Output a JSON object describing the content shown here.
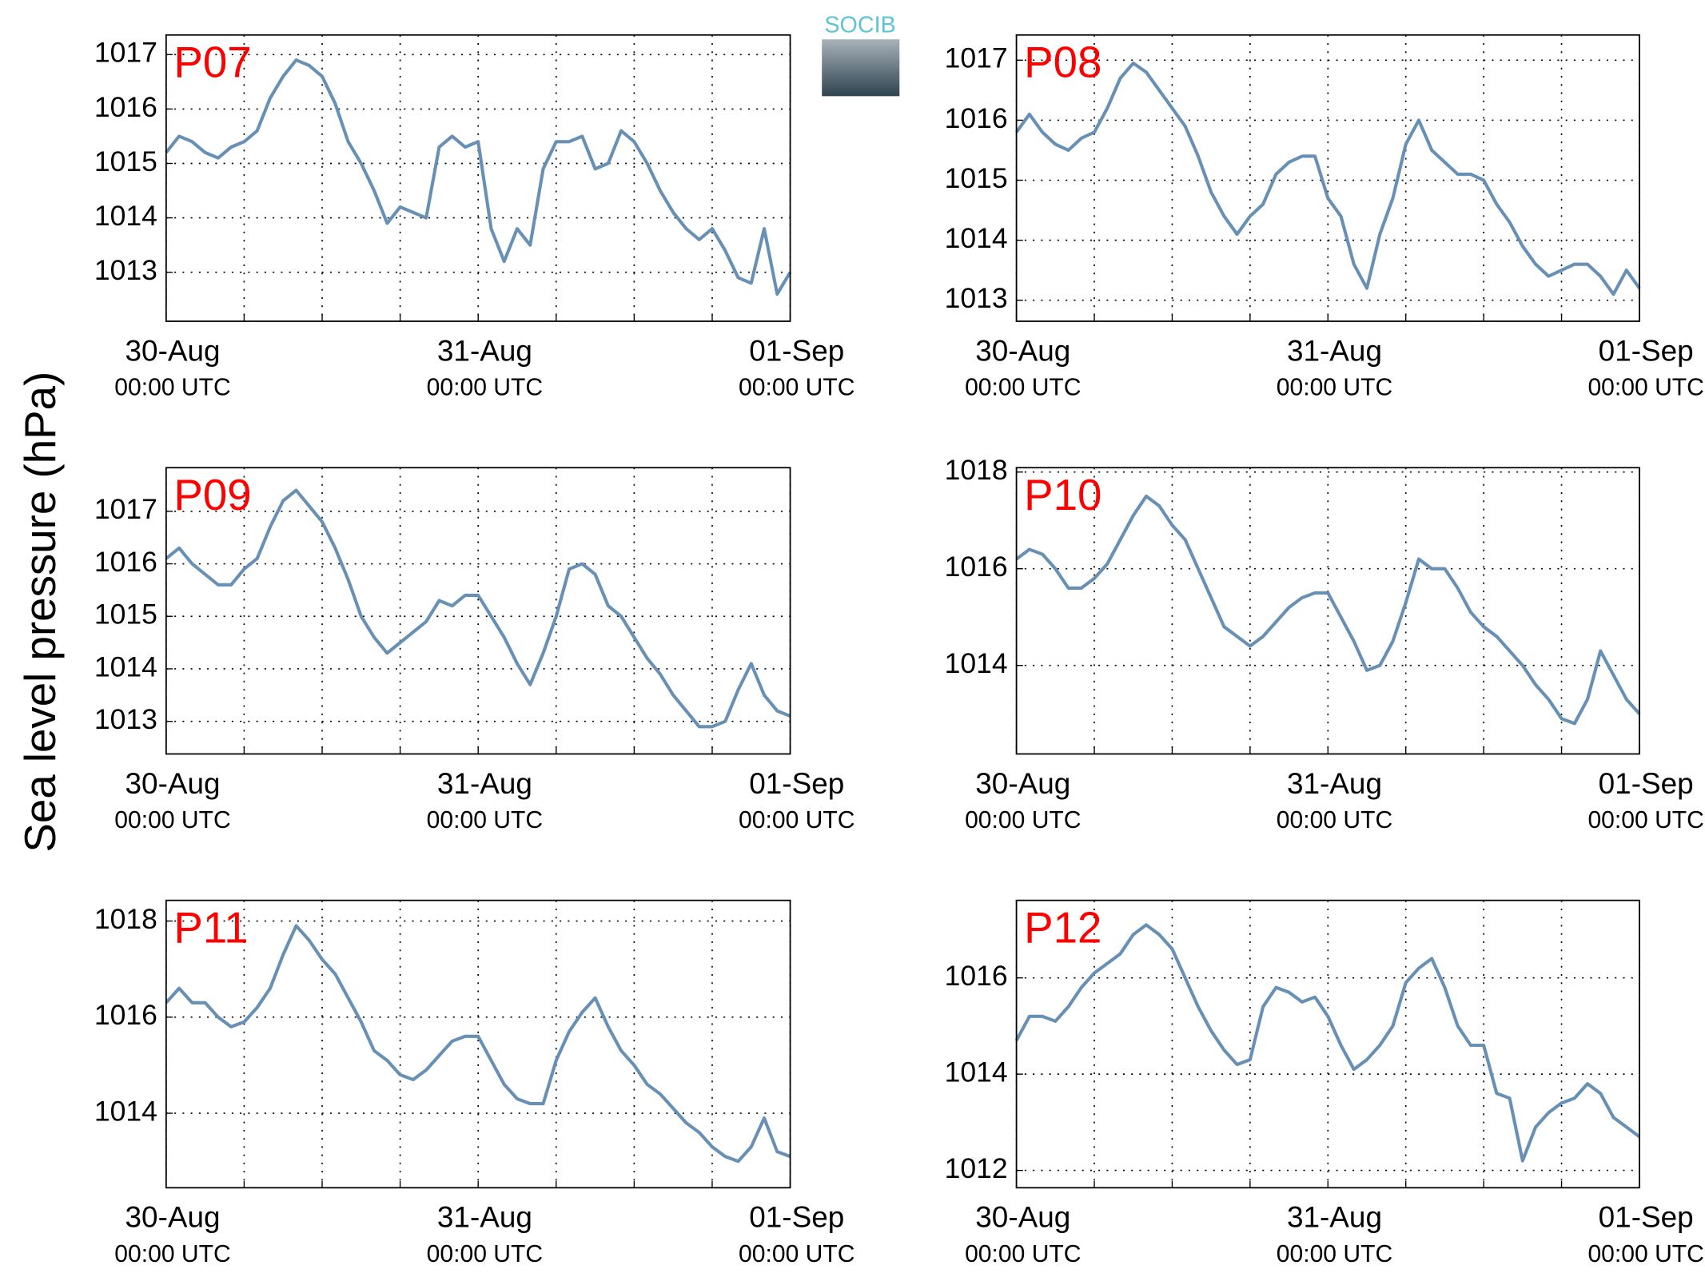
{
  "ylabel": "Sea level pressure (hPa)",
  "logo": "SOCIB",
  "chart_data": [
    {
      "type": "line",
      "title": "P07",
      "color": "#6890b4",
      "grid": true,
      "x": [
        0,
        1,
        2,
        3,
        4,
        5,
        6,
        7,
        8,
        9,
        10,
        11,
        12,
        13,
        14,
        15,
        16,
        17,
        18,
        19,
        20,
        21,
        22,
        23,
        24,
        25,
        26,
        27,
        28,
        29,
        30,
        31,
        32,
        33,
        34,
        35,
        36,
        37,
        38,
        39,
        40,
        41,
        42,
        43,
        44,
        45,
        46,
        47,
        48
      ],
      "values": [
        1015.2,
        1015.5,
        1015.4,
        1015.2,
        1015.1,
        1015.3,
        1015.4,
        1015.6,
        1016.2,
        1016.6,
        1016.9,
        1016.8,
        1016.6,
        1016.1,
        1015.4,
        1015.0,
        1014.5,
        1013.9,
        1014.2,
        1014.1,
        1014.0,
        1015.3,
        1015.5,
        1015.3,
        1015.4,
        1013.8,
        1013.2,
        1013.8,
        1013.5,
        1014.9,
        1015.4,
        1015.4,
        1015.5,
        1014.9,
        1015.0,
        1015.6,
        1015.4,
        1015.0,
        1014.5,
        1014.1,
        1013.8,
        1013.6,
        1013.8,
        1013.4,
        1012.9,
        1012.8,
        1013.8,
        1012.6,
        1013.0
      ],
      "xlim": [
        0,
        48
      ],
      "xticks": [
        {
          "value": 0,
          "label": "30-Aug",
          "sublabel": "00:00 UTC"
        },
        {
          "value": 24,
          "label": "31-Aug",
          "sublabel": "00:00 UTC"
        },
        {
          "value": 48,
          "label": "01-Sep",
          "sublabel": "00:00 UTC"
        }
      ],
      "xminor": [
        6,
        12,
        18,
        30,
        36,
        42
      ],
      "ylim": [
        1012.1,
        1017.36
      ],
      "yticks": [
        1013,
        1014,
        1015,
        1016,
        1017
      ]
    },
    {
      "type": "line",
      "title": "P08",
      "color": "#6890b4",
      "grid": true,
      "x": [
        0,
        1,
        2,
        3,
        4,
        5,
        6,
        7,
        8,
        9,
        10,
        11,
        12,
        13,
        14,
        15,
        16,
        17,
        18,
        19,
        20,
        21,
        22,
        23,
        24,
        25,
        26,
        27,
        28,
        29,
        30,
        31,
        32,
        33,
        34,
        35,
        36,
        37,
        38,
        39,
        40,
        41,
        42,
        43,
        44,
        45,
        46,
        47,
        48
      ],
      "values": [
        1015.8,
        1016.1,
        1015.8,
        1015.6,
        1015.5,
        1015.7,
        1015.8,
        1016.2,
        1016.7,
        1016.95,
        1016.8,
        1016.5,
        1016.2,
        1015.9,
        1015.4,
        1014.8,
        1014.4,
        1014.1,
        1014.4,
        1014.6,
        1015.1,
        1015.3,
        1015.4,
        1015.4,
        1014.7,
        1014.4,
        1013.6,
        1013.2,
        1014.1,
        1014.7,
        1015.6,
        1016.0,
        1015.5,
        1015.3,
        1015.1,
        1015.1,
        1015.0,
        1014.6,
        1014.3,
        1013.9,
        1013.6,
        1013.4,
        1013.5,
        1013.6,
        1013.6,
        1013.4,
        1013.1,
        1013.5,
        1013.2
      ],
      "xlim": [
        0,
        48
      ],
      "xticks": [
        {
          "value": 0,
          "label": "30-Aug",
          "sublabel": "00:00 UTC"
        },
        {
          "value": 24,
          "label": "31-Aug",
          "sublabel": "00:00 UTC"
        },
        {
          "value": 48,
          "label": "01-Sep",
          "sublabel": "00:00 UTC"
        }
      ],
      "xminor": [
        6,
        12,
        18,
        30,
        36,
        42
      ],
      "ylim": [
        1012.65,
        1017.42
      ],
      "yticks": [
        1013,
        1014,
        1015,
        1016,
        1017
      ]
    },
    {
      "type": "line",
      "title": "P09",
      "color": "#6890b4",
      "grid": true,
      "x": [
        0,
        1,
        2,
        3,
        4,
        5,
        6,
        7,
        8,
        9,
        10,
        11,
        12,
        13,
        14,
        15,
        16,
        17,
        18,
        19,
        20,
        21,
        22,
        23,
        24,
        25,
        26,
        27,
        28,
        29,
        30,
        31,
        32,
        33,
        34,
        35,
        36,
        37,
        38,
        39,
        40,
        41,
        42,
        43,
        44,
        45,
        46,
        47,
        48
      ],
      "values": [
        1016.1,
        1016.3,
        1016.0,
        1015.8,
        1015.6,
        1015.6,
        1015.9,
        1016.1,
        1016.7,
        1017.2,
        1017.4,
        1017.1,
        1016.8,
        1016.3,
        1015.7,
        1015.0,
        1014.6,
        1014.3,
        1014.5,
        1014.7,
        1014.9,
        1015.3,
        1015.2,
        1015.4,
        1015.4,
        1015.0,
        1014.6,
        1014.1,
        1013.7,
        1014.3,
        1015.0,
        1015.9,
        1016.0,
        1015.8,
        1015.2,
        1015.0,
        1014.6,
        1014.2,
        1013.9,
        1013.5,
        1013.2,
        1012.9,
        1012.9,
        1013.0,
        1013.6,
        1014.1,
        1013.5,
        1013.2,
        1013.1
      ],
      "xlim": [
        0,
        48
      ],
      "xticks": [
        {
          "value": 0,
          "label": "30-Aug",
          "sublabel": "00:00 UTC"
        },
        {
          "value": 24,
          "label": "31-Aug",
          "sublabel": "00:00 UTC"
        },
        {
          "value": 48,
          "label": "01-Sep",
          "sublabel": "00:00 UTC"
        }
      ],
      "xminor": [
        6,
        12,
        18,
        30,
        36,
        42
      ],
      "ylim": [
        1012.38,
        1017.83
      ],
      "yticks": [
        1013,
        1014,
        1015,
        1016,
        1017
      ]
    },
    {
      "type": "line",
      "title": "P10",
      "color": "#6890b4",
      "grid": true,
      "x": [
        0,
        1,
        2,
        3,
        4,
        5,
        6,
        7,
        8,
        9,
        10,
        11,
        12,
        13,
        14,
        15,
        16,
        17,
        18,
        19,
        20,
        21,
        22,
        23,
        24,
        25,
        26,
        27,
        28,
        29,
        30,
        31,
        32,
        33,
        34,
        35,
        36,
        37,
        38,
        39,
        40,
        41,
        42,
        43,
        44,
        45,
        46,
        47,
        48
      ],
      "values": [
        1016.2,
        1016.4,
        1016.3,
        1016.0,
        1015.6,
        1015.6,
        1015.8,
        1016.1,
        1016.6,
        1017.1,
        1017.5,
        1017.3,
        1016.9,
        1016.6,
        1016.0,
        1015.4,
        1014.8,
        1014.6,
        1014.4,
        1014.6,
        1014.9,
        1015.2,
        1015.4,
        1015.5,
        1015.5,
        1015.0,
        1014.5,
        1013.9,
        1014.0,
        1014.5,
        1015.3,
        1016.2,
        1016.0,
        1016.0,
        1015.6,
        1015.1,
        1014.8,
        1014.6,
        1014.3,
        1014.0,
        1013.6,
        1013.3,
        1012.9,
        1012.8,
        1013.3,
        1014.3,
        1013.8,
        1013.3,
        1013.0
      ],
      "xlim": [
        0,
        48
      ],
      "xticks": [
        {
          "value": 0,
          "label": "30-Aug",
          "sublabel": "00:00 UTC"
        },
        {
          "value": 24,
          "label": "31-Aug",
          "sublabel": "00:00 UTC"
        },
        {
          "value": 48,
          "label": "01-Sep",
          "sublabel": "00:00 UTC"
        }
      ],
      "xminor": [
        6,
        12,
        18,
        30,
        36,
        42
      ],
      "ylim": [
        1012.17,
        1018.09
      ],
      "yticks": [
        1014,
        1016,
        1018
      ]
    },
    {
      "type": "line",
      "title": "P11",
      "color": "#6890b4",
      "grid": true,
      "x": [
        0,
        1,
        2,
        3,
        4,
        5,
        6,
        7,
        8,
        9,
        10,
        11,
        12,
        13,
        14,
        15,
        16,
        17,
        18,
        19,
        20,
        21,
        22,
        23,
        24,
        25,
        26,
        27,
        28,
        29,
        30,
        31,
        32,
        33,
        34,
        35,
        36,
        37,
        38,
        39,
        40,
        41,
        42,
        43,
        44,
        45,
        46,
        47,
        48
      ],
      "values": [
        1016.3,
        1016.6,
        1016.3,
        1016.3,
        1016.0,
        1015.8,
        1015.9,
        1016.2,
        1016.6,
        1017.3,
        1017.9,
        1017.6,
        1017.2,
        1016.9,
        1016.4,
        1015.9,
        1015.3,
        1015.1,
        1014.8,
        1014.7,
        1014.9,
        1015.2,
        1015.5,
        1015.6,
        1015.6,
        1015.1,
        1014.6,
        1014.3,
        1014.2,
        1014.2,
        1015.1,
        1015.7,
        1016.1,
        1016.4,
        1015.8,
        1015.3,
        1015.0,
        1014.6,
        1014.4,
        1014.1,
        1013.8,
        1013.6,
        1013.3,
        1013.1,
        1013.0,
        1013.3,
        1013.9,
        1013.2,
        1013.1
      ],
      "xlim": [
        0,
        48
      ],
      "xticks": [
        {
          "value": 0,
          "label": "30-Aug",
          "sublabel": "00:00 UTC"
        },
        {
          "value": 24,
          "label": "31-Aug",
          "sublabel": "00:00 UTC"
        },
        {
          "value": 48,
          "label": "01-Sep",
          "sublabel": "00:00 UTC"
        }
      ],
      "xminor": [
        6,
        12,
        18,
        30,
        36,
        42
      ],
      "ylim": [
        1012.45,
        1018.43
      ],
      "yticks": [
        1014,
        1016,
        1018
      ]
    },
    {
      "type": "line",
      "title": "P12",
      "color": "#6890b4",
      "grid": true,
      "x": [
        0,
        1,
        2,
        3,
        4,
        5,
        6,
        7,
        8,
        9,
        10,
        11,
        12,
        13,
        14,
        15,
        16,
        17,
        18,
        19,
        20,
        21,
        22,
        23,
        24,
        25,
        26,
        27,
        28,
        29,
        30,
        31,
        32,
        33,
        34,
        35,
        36,
        37,
        38,
        39,
        40,
        41,
        42,
        43,
        44,
        45,
        46,
        47,
        48
      ],
      "values": [
        1014.7,
        1015.2,
        1015.2,
        1015.1,
        1015.4,
        1015.8,
        1016.1,
        1016.3,
        1016.5,
        1016.9,
        1017.1,
        1016.9,
        1016.6,
        1016.0,
        1015.4,
        1014.9,
        1014.5,
        1014.2,
        1014.3,
        1015.4,
        1015.8,
        1015.7,
        1015.5,
        1015.6,
        1015.2,
        1014.6,
        1014.1,
        1014.3,
        1014.6,
        1015.0,
        1015.9,
        1016.2,
        1016.4,
        1015.8,
        1015.0,
        1014.6,
        1014.6,
        1013.6,
        1013.5,
        1012.2,
        1012.9,
        1013.2,
        1013.4,
        1013.5,
        1013.8,
        1013.6,
        1013.1,
        1012.9,
        1012.7
      ],
      "xlim": [
        0,
        48
      ],
      "xticks": [
        {
          "value": 0,
          "label": "30-Aug",
          "sublabel": "00:00 UTC"
        },
        {
          "value": 24,
          "label": "31-Aug",
          "sublabel": "00:00 UTC"
        },
        {
          "value": 48,
          "label": "01-Sep",
          "sublabel": "00:00 UTC"
        }
      ],
      "xminor": [
        6,
        12,
        18,
        30,
        36,
        42
      ],
      "ylim": [
        1011.64,
        1017.61
      ],
      "yticks": [
        1012,
        1014,
        1016
      ]
    }
  ]
}
